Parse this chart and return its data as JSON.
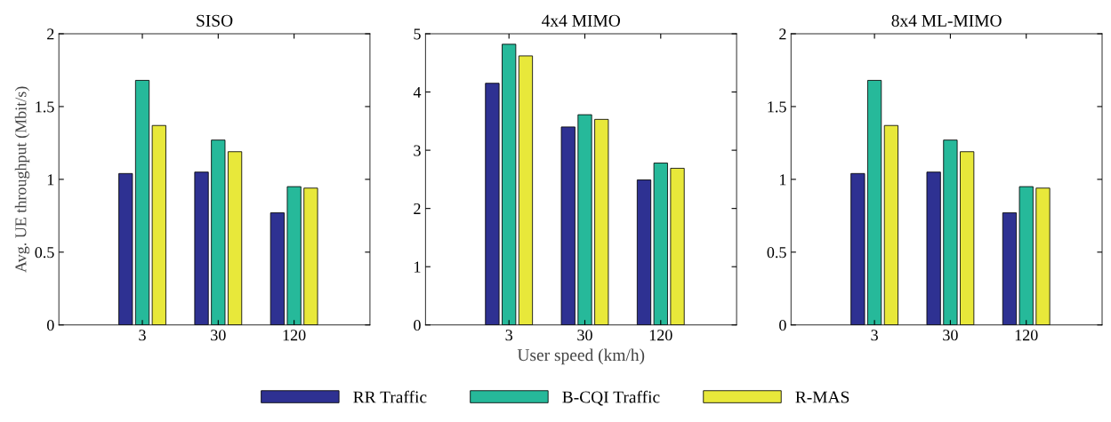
{
  "chart_data": [
    {
      "type": "bar",
      "title": "SISO",
      "ylabel": "Avg. UE throughput (Mbit/s)",
      "categories": [
        "3",
        "30",
        "120"
      ],
      "ylim": [
        0,
        2
      ],
      "yticks": [
        0,
        0.5,
        1,
        1.5,
        2
      ],
      "grid": false,
      "series": [
        {
          "color": "#2e3192",
          "values": [
            1.04,
            1.05,
            0.77
          ]
        },
        {
          "color": "#26b99a",
          "values": [
            1.68,
            1.27,
            0.95
          ]
        },
        {
          "color": "#e8e83a",
          "values": [
            1.37,
            1.19,
            0.94
          ]
        }
      ]
    },
    {
      "type": "bar",
      "title": "4x4 MIMO",
      "xlabel": "User speed (km/h)",
      "categories": [
        "3",
        "30",
        "120"
      ],
      "ylim": [
        0,
        5
      ],
      "yticks": [
        0,
        1,
        2,
        3,
        4,
        5
      ],
      "grid": false,
      "legend": "bottom",
      "series": [
        {
          "name": "RR Traffic",
          "color": "#2e3192",
          "values": [
            4.15,
            3.4,
            2.49
          ]
        },
        {
          "name": "B-CQI Traffic",
          "color": "#26b99a",
          "values": [
            4.82,
            3.61,
            2.78
          ]
        },
        {
          "name": "R-MAS",
          "color": "#e8e83a",
          "values": [
            4.62,
            3.53,
            2.69
          ]
        }
      ]
    },
    {
      "type": "bar",
      "title": "8x4 ML-MIMO",
      "categories": [
        "3",
        "30",
        "120"
      ],
      "ylim": [
        0,
        2
      ],
      "yticks": [
        0,
        0.5,
        1,
        1.5,
        2
      ],
      "grid": false,
      "series": [
        {
          "color": "#2e3192",
          "values": [
            1.04,
            1.05,
            0.77
          ]
        },
        {
          "color": "#26b99a",
          "values": [
            1.68,
            1.27,
            0.95
          ]
        },
        {
          "color": "#e8e83a",
          "values": [
            1.37,
            1.19,
            0.94
          ]
        }
      ]
    }
  ]
}
